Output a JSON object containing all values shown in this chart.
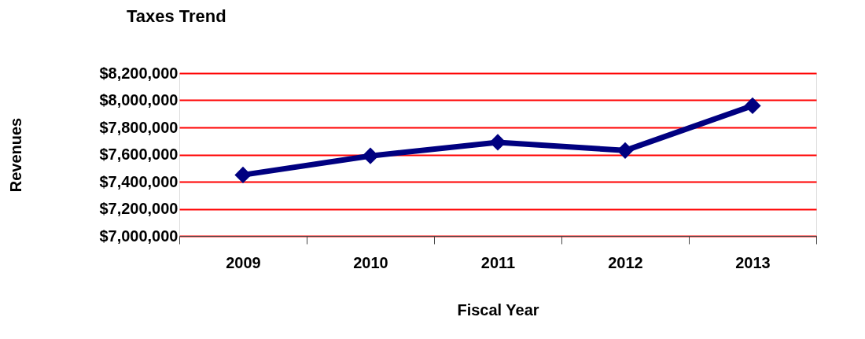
{
  "chart_data": {
    "type": "line",
    "title": "Taxes Trend",
    "xlabel": "Fiscal Year",
    "ylabel": "Revenues",
    "categories": [
      "2009",
      "2010",
      "2011",
      "2012",
      "2013"
    ],
    "series": [
      {
        "color": "#000080",
        "values": [
          7450000,
          7590000,
          7690000,
          7630000,
          7960000
        ]
      }
    ],
    "ylim": [
      7000000,
      8200000
    ],
    "yticks": [
      {
        "value": 7000000,
        "label": "$7,000,000"
      },
      {
        "value": 7200000,
        "label": "$7,200,000"
      },
      {
        "value": 7400000,
        "label": "$7,400,000"
      },
      {
        "value": 7600000,
        "label": "$7,600,000"
      },
      {
        "value": 7800000,
        "label": "$7,800,000"
      },
      {
        "value": 8000000,
        "label": "$8,000,000"
      },
      {
        "value": 8200000,
        "label": "$8,200,000"
      }
    ],
    "grid": "y",
    "marker": "diamond",
    "line_style": "solid"
  }
}
